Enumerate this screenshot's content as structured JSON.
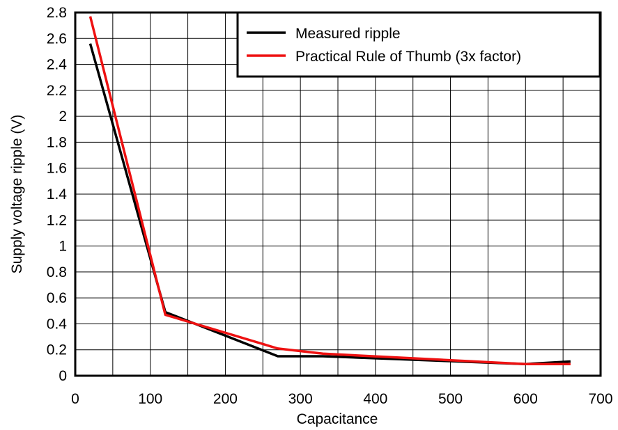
{
  "chart_data": {
    "type": "line",
    "xlabel": "Capacitance",
    "ylabel": "Supply voltage ripple (V)",
    "xlim": [
      0,
      700
    ],
    "ylim": [
      0,
      2.8
    ],
    "x_ticks": [
      0,
      100,
      200,
      300,
      400,
      500,
      600,
      700
    ],
    "y_ticks": [
      0,
      0.2,
      0.4,
      0.6,
      0.8,
      1,
      1.2,
      1.4,
      1.6,
      1.8,
      2,
      2.2,
      2.4,
      2.6,
      2.8
    ],
    "x_grid_step": 50,
    "grid": true,
    "legend_position": "top-right",
    "series": [
      {
        "name": "Measured ripple",
        "color": "#000000",
        "points": [
          {
            "x": 20,
            "y": 2.56
          },
          {
            "x": 120,
            "y": 0.49
          },
          {
            "x": 270,
            "y": 0.15
          },
          {
            "x": 330,
            "y": 0.15
          },
          {
            "x": 600,
            "y": 0.09
          },
          {
            "x": 660,
            "y": 0.11
          }
        ]
      },
      {
        "name": "Practical Rule of Thumb (3x factor)",
        "color": "#ee1111",
        "points": [
          {
            "x": 20,
            "y": 2.77
          },
          {
            "x": 120,
            "y": 0.47
          },
          {
            "x": 270,
            "y": 0.21
          },
          {
            "x": 330,
            "y": 0.17
          },
          {
            "x": 600,
            "y": 0.09
          },
          {
            "x": 660,
            "y": 0.09
          }
        ]
      }
    ]
  }
}
